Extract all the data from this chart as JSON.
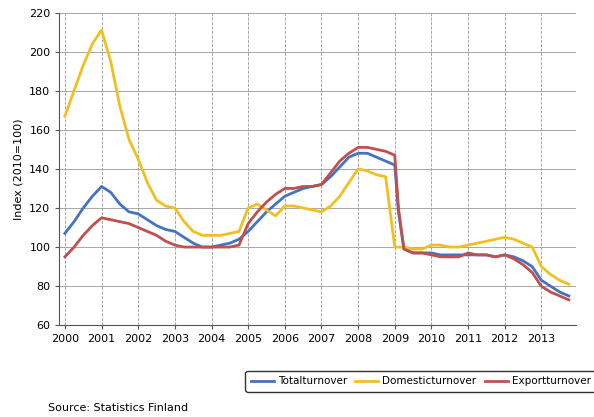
{
  "x_pts": [
    2000.0,
    2000.25,
    2000.5,
    2000.75,
    2001.0,
    2001.25,
    2001.5,
    2001.75,
    2002.0,
    2002.25,
    2002.5,
    2002.75,
    2003.0,
    2003.25,
    2003.5,
    2003.75,
    2004.0,
    2004.25,
    2004.5,
    2004.75,
    2005.0,
    2005.25,
    2005.5,
    2005.75,
    2006.0,
    2006.25,
    2006.5,
    2006.75,
    2007.0,
    2007.25,
    2007.5,
    2007.75,
    2008.0,
    2008.25,
    2008.5,
    2008.75,
    2009.0,
    2009.1,
    2009.25,
    2009.5,
    2009.75,
    2010.0,
    2010.25,
    2010.5,
    2010.75,
    2011.0,
    2011.25,
    2011.5,
    2011.75,
    2012.0,
    2012.25,
    2012.5,
    2012.75,
    2013.0,
    2013.25,
    2013.5,
    2013.75
  ],
  "total_y": [
    107,
    113,
    120,
    126,
    131,
    128,
    122,
    118,
    117,
    114,
    111,
    109,
    108,
    105,
    102,
    100,
    100,
    101,
    102,
    104,
    108,
    113,
    118,
    122,
    126,
    128,
    130,
    131,
    132,
    136,
    141,
    146,
    148,
    148,
    146,
    144,
    142,
    118,
    99,
    97,
    97,
    97,
    96,
    96,
    96,
    96,
    96,
    96,
    95,
    96,
    95,
    93,
    90,
    83,
    80,
    77,
    75
  ],
  "domestic_y": [
    167,
    180,
    193,
    204,
    211,
    195,
    172,
    155,
    145,
    133,
    124,
    121,
    120,
    113,
    108,
    106,
    106,
    106,
    107,
    108,
    120,
    122,
    119,
    116,
    121,
    121,
    120,
    119,
    118,
    121,
    126,
    133,
    140,
    139,
    137,
    136,
    100,
    100,
    100,
    99,
    99,
    101,
    101,
    100,
    100,
    101,
    102,
    103,
    104,
    105,
    104,
    102,
    100,
    90,
    86,
    83,
    81
  ],
  "export_y": [
    95,
    100,
    106,
    111,
    115,
    114,
    113,
    112,
    110,
    108,
    106,
    103,
    101,
    100,
    100,
    100,
    100,
    100,
    100,
    101,
    112,
    118,
    123,
    127,
    130,
    130,
    131,
    131,
    132,
    138,
    144,
    148,
    151,
    151,
    150,
    149,
    147,
    120,
    99,
    97,
    97,
    96,
    95,
    95,
    95,
    97,
    96,
    96,
    95,
    96,
    94,
    91,
    87,
    80,
    77,
    75,
    73
  ],
  "total_color": "#4472C4",
  "domestic_color": "#F0C020",
  "export_color": "#C0504D",
  "ylabel": "Index (2010=100)",
  "ylim": [
    60,
    220
  ],
  "yticks": [
    60,
    80,
    100,
    120,
    140,
    160,
    180,
    200,
    220
  ],
  "xlim": [
    1999.85,
    2013.95
  ],
  "xtick_years": [
    2000,
    2001,
    2002,
    2003,
    2004,
    2005,
    2006,
    2007,
    2008,
    2009,
    2010,
    2011,
    2012,
    2013
  ],
  "legend_labels": [
    "Totalturnover",
    "Domesticturnover",
    "Exportturnover"
  ],
  "source_text": "Source: Statistics Finland",
  "linewidth": 2.0,
  "background_color": "#FFFFFF",
  "hgrid_color": "#999999",
  "vgrid_color": "#999999"
}
